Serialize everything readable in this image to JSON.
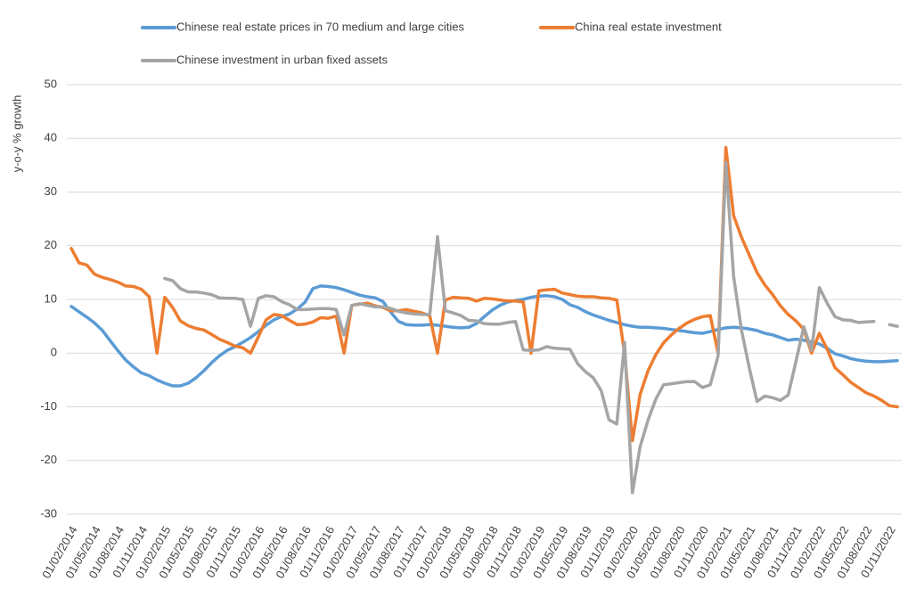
{
  "chart_data": {
    "type": "line",
    "y_axis_label": "y-o-y % growth",
    "categories": [
      "01/02/2014",
      null,
      null,
      "01/05/2014",
      null,
      null,
      "01/08/2014",
      null,
      null,
      "01/11/2014",
      null,
      null,
      "01/02/2015",
      null,
      null,
      "01/05/2015",
      null,
      null,
      "01/08/2015",
      null,
      null,
      "01/11/2015",
      null,
      null,
      "01/02/2016",
      null,
      null,
      "01/05/2016",
      null,
      null,
      "01/08/2016",
      null,
      null,
      "01/11/2016",
      null,
      null,
      "01/02/2017",
      null,
      null,
      "01/05/2017",
      null,
      null,
      "01/08/2017",
      null,
      null,
      "01/11/2017",
      null,
      null,
      "01/02/2018",
      null,
      null,
      "01/05/2018",
      null,
      null,
      "01/08/2018",
      null,
      null,
      "01/11/2018",
      null,
      null,
      "01/02/2019",
      null,
      null,
      "01/05/2019",
      null,
      null,
      "01/08/2019",
      null,
      null,
      "01/11/2019",
      null,
      null,
      "01/02/2020",
      null,
      null,
      "01/05/2020",
      null,
      null,
      "01/08/2020",
      null,
      null,
      "01/11/2020",
      null,
      null,
      "01/02/2021",
      null,
      null,
      "01/05/2021",
      null,
      null,
      "01/08/2021",
      null,
      null,
      "01/11/2021",
      null,
      null,
      "01/02/2022",
      null,
      null,
      "01/05/2022",
      null,
      null,
      "01/08/2022",
      null,
      null,
      "01/11/2022",
      null
    ],
    "series": [
      {
        "name": "Chinese real estate prices in 70 medium and large cities",
        "color": "#5b9bd5",
        "values": [
          8.7,
          7.7,
          6.7,
          5.6,
          4.2,
          2.3,
          0.4,
          -1.3,
          -2.6,
          -3.7,
          -4.2,
          -5.0,
          -5.6,
          -6.1,
          -6.1,
          -5.6,
          -4.6,
          -3.3,
          -1.8,
          -0.5,
          0.5,
          1.2,
          2.0,
          2.9,
          4.0,
          5.2,
          6.2,
          6.8,
          7.3,
          8.2,
          9.5,
          12.0,
          12.5,
          12.4,
          12.2,
          11.8,
          11.3,
          10.8,
          10.5,
          10.3,
          9.6,
          7.6,
          5.9,
          5.3,
          5.2,
          5.2,
          5.3,
          5.2,
          5.0,
          4.8,
          4.7,
          4.8,
          5.5,
          6.8,
          8.0,
          8.9,
          9.5,
          9.8,
          10.0,
          10.4,
          10.6,
          10.7,
          10.5,
          10.0,
          9.0,
          8.5,
          7.7,
          7.1,
          6.6,
          6.1,
          5.7,
          5.3,
          5.0,
          4.8,
          4.8,
          4.7,
          4.6,
          4.4,
          4.2,
          4.0,
          3.8,
          3.7,
          4.0,
          4.4,
          4.7,
          4.8,
          4.7,
          4.5,
          4.2,
          3.7,
          3.4,
          2.9,
          2.4,
          2.6,
          2.4,
          2.1,
          1.7,
          0.9,
          -0.1,
          -0.5,
          -1.0,
          -1.3,
          -1.5,
          -1.6,
          -1.6,
          -1.5,
          -1.4
        ]
      },
      {
        "name": "China real estate investment",
        "color": "#ed7d31",
        "values": [
          19.5,
          16.8,
          16.4,
          14.7,
          14.1,
          13.7,
          13.2,
          12.5,
          12.4,
          11.9,
          10.5,
          0,
          10.4,
          8.5,
          6.0,
          5.1,
          4.6,
          4.3,
          3.5,
          2.6,
          2.0,
          1.3,
          1.0,
          0,
          3.0,
          6.2,
          7.2,
          7.0,
          6.1,
          5.3,
          5.4,
          5.8,
          6.6,
          6.5,
          6.9,
          0,
          8.9,
          9.1,
          9.3,
          8.8,
          8.5,
          7.9,
          7.9,
          8.1,
          7.8,
          7.5,
          7.0,
          0,
          9.9,
          10.4,
          10.3,
          10.2,
          9.7,
          10.2,
          10.1,
          9.9,
          9.7,
          9.7,
          9.5,
          0,
          11.6,
          11.8,
          11.9,
          11.2,
          10.9,
          10.6,
          10.5,
          10.5,
          10.3,
          10.2,
          9.9,
          0,
          -16.3,
          -7.7,
          -3.3,
          -0.3,
          1.9,
          3.4,
          4.6,
          5.6,
          6.3,
          6.8,
          7.0,
          0,
          38.3,
          25.6,
          21.6,
          18.3,
          15.0,
          12.7,
          10.9,
          8.8,
          7.2,
          6.0,
          4.4,
          0,
          3.7,
          0.7,
          -2.7,
          -4.0,
          -5.4,
          -6.4,
          -7.4,
          -8.0,
          -8.8,
          -9.8,
          -10.0
        ]
      },
      {
        "name": "Chinese investment in urban fixed assets",
        "color": "#a5a5a5",
        "values": [
          null,
          null,
          null,
          null,
          null,
          null,
          null,
          null,
          null,
          null,
          null,
          null,
          13.9,
          13.5,
          12.0,
          11.4,
          11.4,
          11.2,
          10.9,
          10.3,
          10.2,
          10.2,
          10.0,
          5.0,
          10.2,
          10.7,
          10.5,
          9.6,
          9.0,
          8.1,
          8.1,
          8.2,
          8.3,
          8.3,
          8.1,
          3.4,
          8.9,
          9.2,
          8.9,
          8.6,
          8.6,
          8.3,
          7.8,
          7.5,
          7.3,
          7.2,
          7.2,
          21.7,
          7.9,
          7.5,
          7.0,
          6.1,
          6.0,
          5.5,
          5.4,
          5.4,
          5.7,
          5.9,
          0.6,
          0.5,
          0.6,
          1.2,
          0.9,
          0.8,
          0.7,
          -2.0,
          -3.5,
          -4.6,
          -7.0,
          -12.4,
          -13.2,
          2.0,
          -26.0,
          -17.4,
          -12.5,
          -8.6,
          -5.9,
          -5.7,
          -5.5,
          -5.3,
          -5.3,
          -6.4,
          -5.9,
          -0.5,
          35.5,
          14.3,
          4.3,
          -2.7,
          -9.0,
          -8.0,
          -8.3,
          -8.8,
          -7.8,
          -1.5,
          4.9,
          0.5,
          12.2,
          9.3,
          6.8,
          6.2,
          6.1,
          5.7,
          5.8,
          5.9,
          null,
          5.3,
          5.0
        ]
      }
    ],
    "ylim": [
      -30,
      50
    ],
    "yticks": [
      -30,
      -20,
      -10,
      0,
      10,
      20,
      30,
      40,
      50
    ],
    "grid": true
  }
}
